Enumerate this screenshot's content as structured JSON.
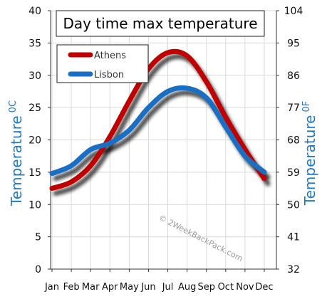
{
  "chart_data": {
    "type": "line",
    "title": "Day time max temperature",
    "ylabel_left": "Temperature",
    "ylabel_left_unit": "0C",
    "ylabel_right": "Temperature",
    "ylabel_right_unit": "0F",
    "categories": [
      "Jan",
      "Feb",
      "Mar",
      "Apr",
      "May",
      "Jun",
      "Jul",
      "Aug",
      "Sep",
      "Oct",
      "Nov",
      "Dec"
    ],
    "ylim": [
      0,
      40
    ],
    "y_ticks_left": [
      "0",
      "5",
      "10",
      "15",
      "20",
      "25",
      "30",
      "35",
      "40"
    ],
    "y_ticks_right": [
      "32",
      "41",
      "50",
      "59",
      "68",
      "77",
      "86",
      "95",
      "104"
    ],
    "grid": true,
    "legend_position": "top-left",
    "series": [
      {
        "name": "Athens",
        "color": "#c00000",
        "values": [
          12.5,
          13.5,
          16,
          20.5,
          26,
          31,
          33.5,
          33,
          29,
          23.5,
          18.5,
          14
        ]
      },
      {
        "name": "Lisbon",
        "color": "#1a6fc4",
        "values": [
          14.8,
          16,
          18.5,
          19.5,
          21.5,
          25,
          27.5,
          28,
          26.5,
          22,
          17.5,
          15
        ]
      }
    ],
    "watermark": "© 2WeekBackPack.com"
  }
}
